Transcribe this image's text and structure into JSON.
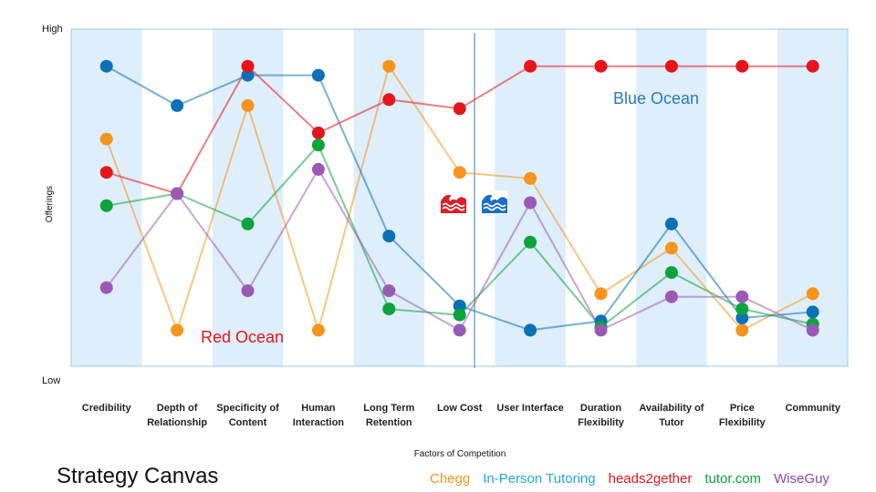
{
  "chart_data": {
    "type": "line",
    "title": "Strategy Canvas",
    "xlabel": "Factors of Competition",
    "ylabel": "Offerings",
    "y_ticks": [
      "Low",
      "High"
    ],
    "ylim": [
      0,
      10
    ],
    "categories": [
      [
        "Credibility"
      ],
      [
        "Depth of",
        "Relationship"
      ],
      [
        "Specificity of",
        "Content"
      ],
      [
        "Human",
        "Interaction"
      ],
      [
        "Long Term",
        "Retention"
      ],
      [
        "Low Cost"
      ],
      [
        "User Interface"
      ],
      [
        "Duration",
        "Flexibility"
      ],
      [
        "Availability of",
        "Tutor"
      ],
      [
        "Price",
        "Flexibility"
      ],
      [
        "Community"
      ]
    ],
    "series": [
      {
        "name": "Chegg",
        "color": "#f7941d",
        "values": [
          7.1,
          0.8,
          8.2,
          0.8,
          9.5,
          6.0,
          5.8,
          2.0,
          3.5,
          0.8,
          2.0
        ]
      },
      {
        "name": "In-Person Tutoring",
        "color": "#0a71b6",
        "values": [
          9.5,
          8.2,
          9.2,
          9.2,
          3.9,
          1.6,
          0.8,
          1.1,
          4.3,
          1.2,
          1.4
        ]
      },
      {
        "name": "heads2gether",
        "color": "#e8141c",
        "values": [
          6.0,
          5.3,
          9.5,
          7.3,
          8.4,
          8.1,
          9.5,
          9.5,
          9.5,
          9.5,
          9.5
        ]
      },
      {
        "name": "tutor.com",
        "color": "#0ba33b",
        "values": [
          4.9,
          5.3,
          4.3,
          6.9,
          1.5,
          1.3,
          3.7,
          0.9,
          2.7,
          1.5,
          1.0
        ]
      },
      {
        "name": "WiseGuy",
        "color": "#9b59b6",
        "values": [
          2.2,
          5.3,
          2.1,
          6.1,
          2.1,
          0.8,
          5.0,
          0.8,
          1.9,
          1.9,
          0.8
        ]
      }
    ],
    "annotations": [
      "Red Ocean",
      "Blue Ocean"
    ],
    "column_shading": "alternating light blue",
    "divider_after": "Low Cost"
  },
  "footer": {
    "title": "Strategy Canvas",
    "legend": [
      {
        "label": "Chegg",
        "color": "#f7941d"
      },
      {
        "label": "In-Person Tutoring",
        "color": "#23a6e0"
      },
      {
        "label": "heads2gether",
        "color": "#e8141c"
      },
      {
        "label": "tutor.com",
        "color": "#0ba33b"
      },
      {
        "label": "WiseGuy",
        "color": "#8e44ad"
      }
    ]
  },
  "icons": [
    "red-wave-icon",
    "blue-wave-icon"
  ]
}
